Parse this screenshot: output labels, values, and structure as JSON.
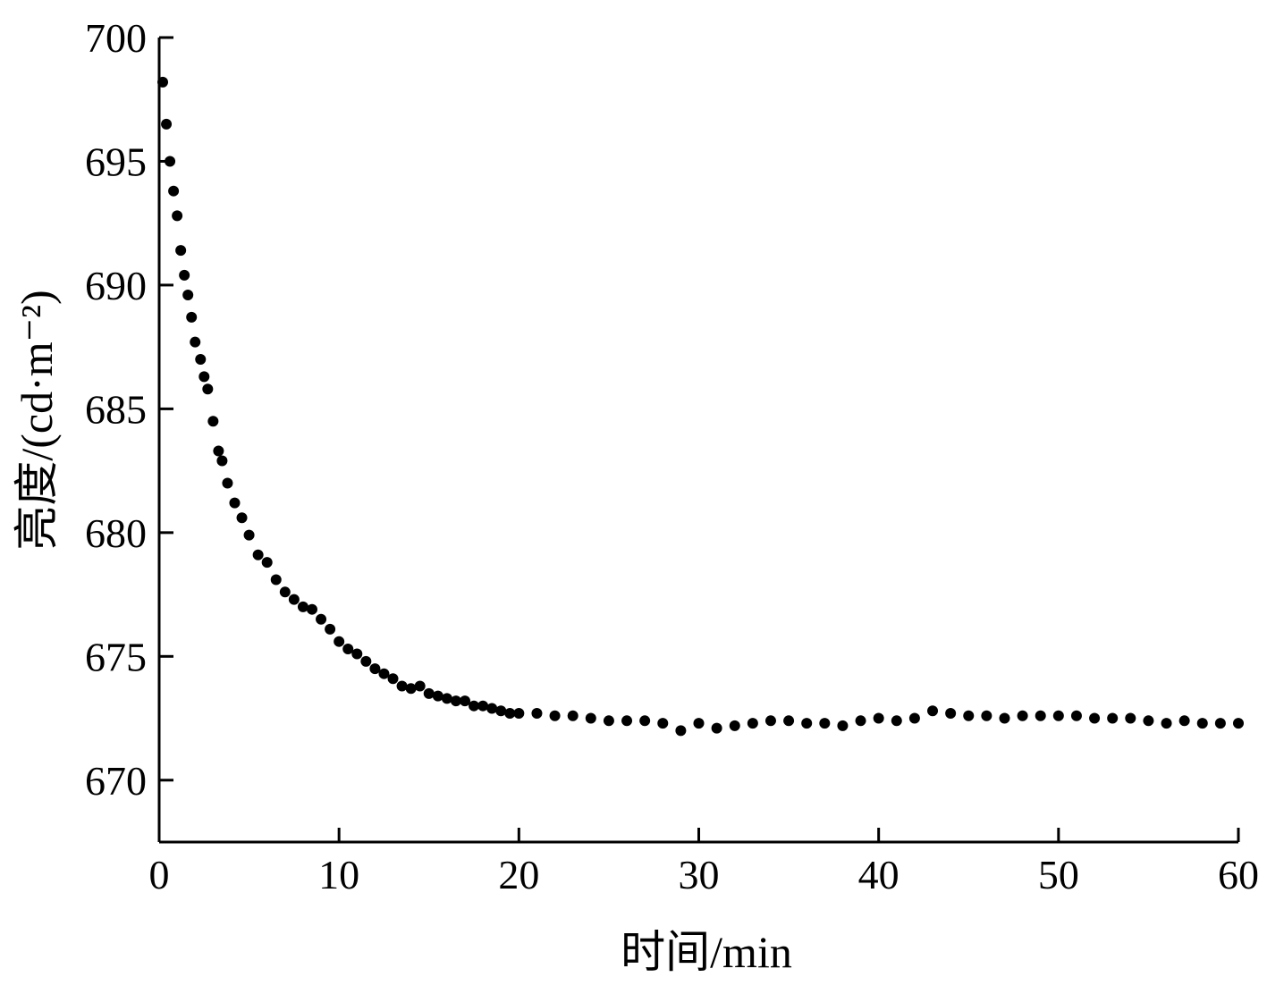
{
  "chart_data": {
    "type": "scatter",
    "x_label": "时间/min",
    "y_label": "亮度/(cd·m⁻²)",
    "color": "#000000",
    "xlim": [
      0,
      60
    ],
    "xticks": [
      0,
      10,
      20,
      30,
      40,
      50,
      60
    ],
    "ylim": [
      667.5,
      700
    ],
    "yticks": [
      670,
      675,
      680,
      685,
      690,
      695,
      700
    ],
    "x": [
      0.2,
      0.4,
      0.6,
      0.8,
      1.0,
      1.2,
      1.4,
      1.6,
      1.8,
      2.0,
      2.3,
      2.5,
      2.7,
      3.0,
      3.3,
      3.5,
      3.8,
      4.2,
      4.6,
      5.0,
      5.5,
      6.0,
      6.5,
      7.0,
      7.5,
      8.0,
      8.5,
      9.0,
      9.5,
      10.0,
      10.5,
      11.0,
      11.5,
      12.0,
      12.5,
      13.0,
      13.5,
      14.0,
      14.5,
      15.0,
      15.5,
      16.0,
      16.5,
      17.0,
      17.5,
      18.0,
      18.5,
      19.0,
      19.5,
      20.0,
      21,
      22,
      23,
      24,
      25,
      26,
      27,
      28,
      29,
      30,
      31,
      32,
      33,
      34,
      35,
      36,
      37,
      38,
      39,
      40,
      41,
      42,
      43,
      44,
      45,
      46,
      47,
      48,
      49,
      50,
      51,
      52,
      53,
      54,
      55,
      56,
      57,
      58,
      59,
      60
    ],
    "values": [
      698.2,
      696.5,
      695.0,
      693.8,
      692.8,
      691.4,
      690.4,
      689.6,
      688.7,
      687.7,
      687.0,
      686.3,
      685.8,
      684.5,
      683.3,
      682.9,
      682.0,
      681.2,
      680.6,
      679.9,
      679.1,
      678.8,
      678.1,
      677.6,
      677.3,
      677.0,
      676.9,
      676.5,
      676.1,
      675.6,
      675.3,
      675.1,
      674.8,
      674.5,
      674.3,
      674.1,
      673.8,
      673.7,
      673.8,
      673.5,
      673.4,
      673.3,
      673.2,
      673.2,
      673.0,
      673.0,
      672.9,
      672.8,
      672.7,
      672.7,
      672.7,
      672.6,
      672.6,
      672.5,
      672.4,
      672.4,
      672.4,
      672.3,
      672.0,
      672.3,
      672.1,
      672.2,
      672.3,
      672.4,
      672.4,
      672.3,
      672.3,
      672.2,
      672.4,
      672.5,
      672.4,
      672.5,
      672.8,
      672.7,
      672.6,
      672.6,
      672.5,
      672.6,
      672.6,
      672.6,
      672.6,
      672.5,
      672.5,
      672.5,
      672.4,
      672.3,
      672.4,
      672.3,
      672.3,
      672.3
    ]
  }
}
